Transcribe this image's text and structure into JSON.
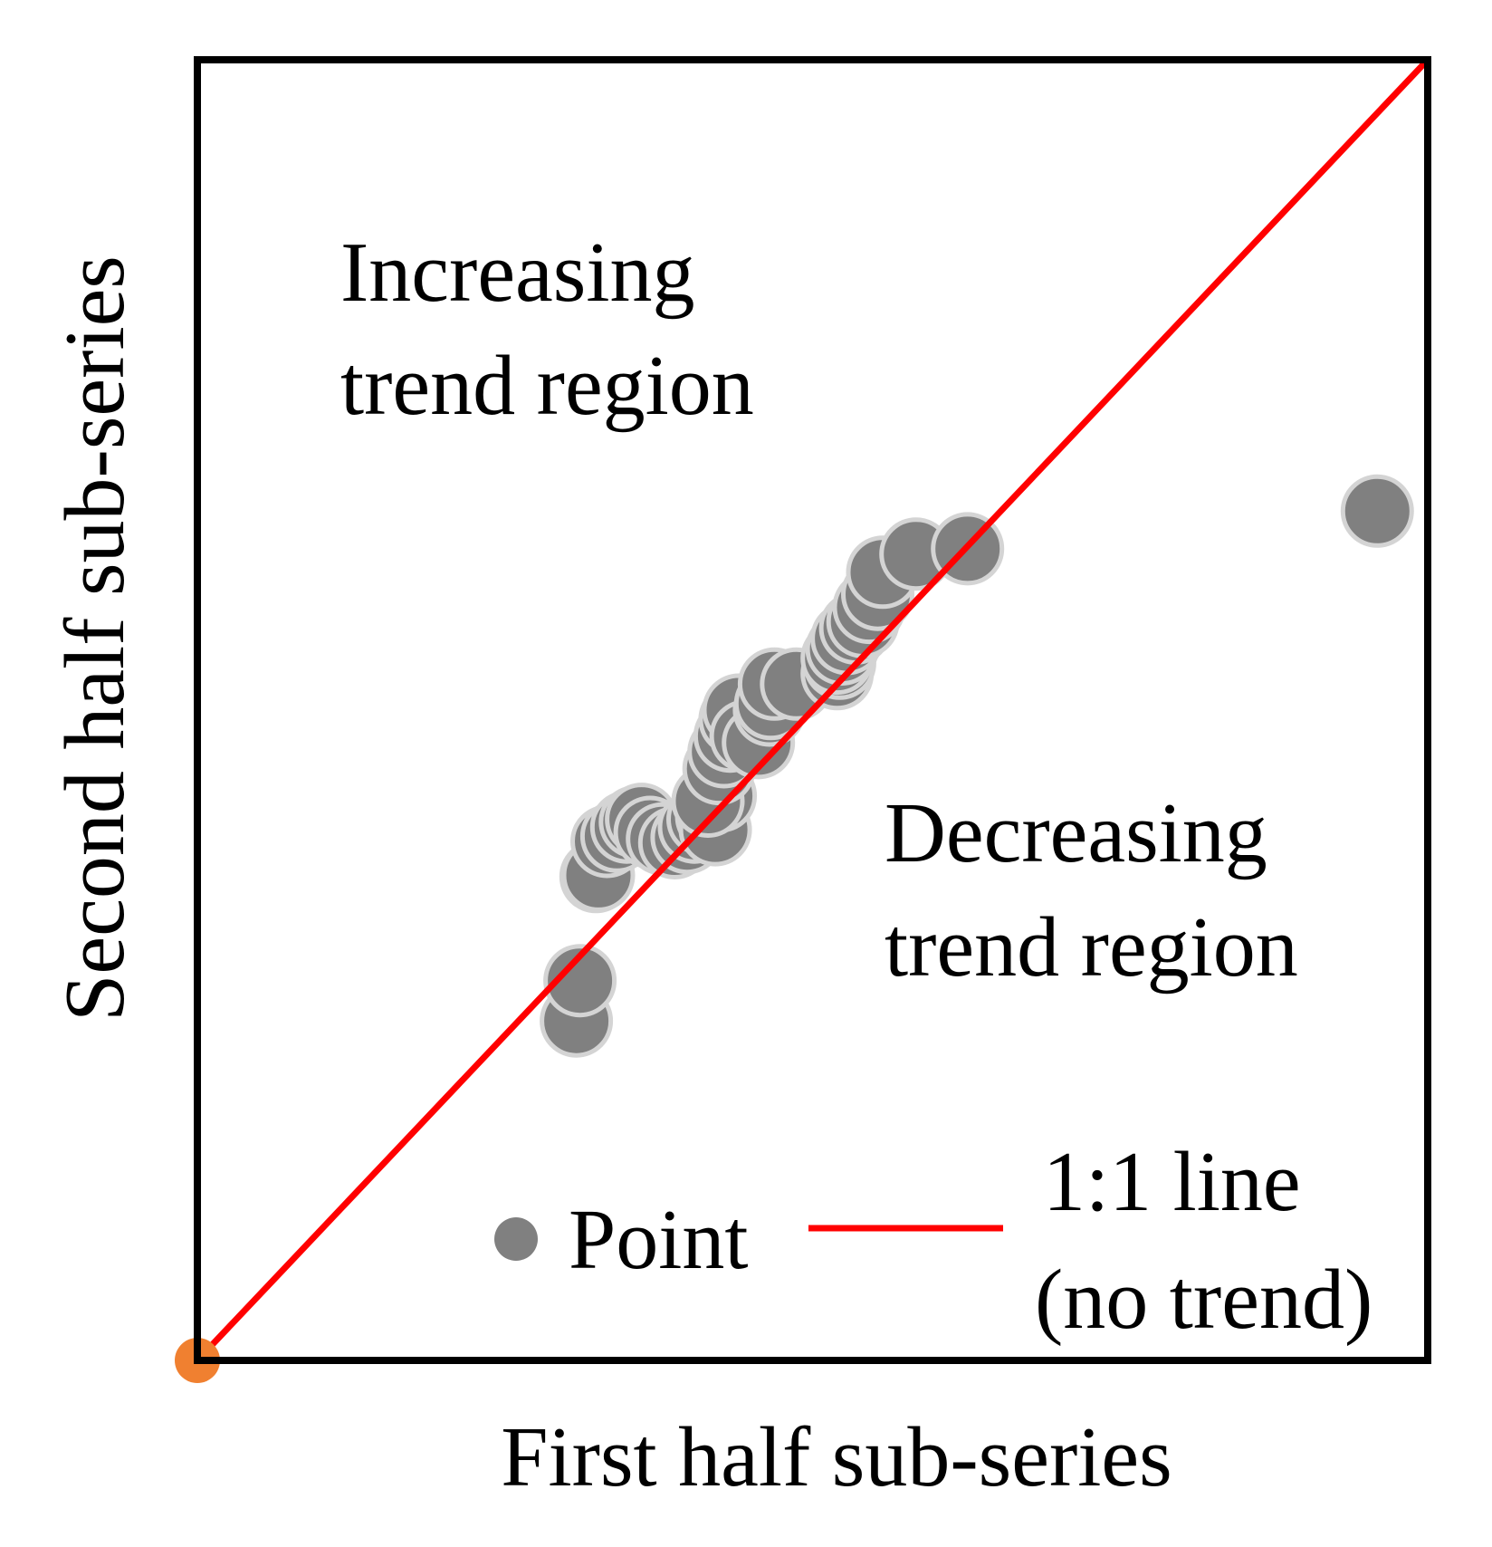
{
  "chart_data": {
    "type": "scatter",
    "title": "",
    "xlabel": "First half sub-series",
    "ylabel": "Second half sub-series",
    "xlim": [
      0,
      1
    ],
    "ylim": [
      0,
      1
    ],
    "grid": false,
    "annotations": {
      "increasing": [
        "Increasing",
        "trend region"
      ],
      "decreasing": [
        "Decreasing",
        "trend region"
      ]
    },
    "legend": {
      "placement": "bottom-right",
      "point_label": "Point",
      "line_label": [
        "1:1 line",
        "(no trend)"
      ]
    },
    "reference_line": {
      "name": "1:1 line",
      "from": [
        0,
        0
      ],
      "to": [
        1,
        1
      ],
      "color": "#ff0000"
    },
    "origin_marker": {
      "x": 0,
      "y": 0,
      "color": "#f08030"
    },
    "series": [
      {
        "color": "#808080",
        "x": [
          0.308,
          0.311,
          0.324,
          0.326,
          0.333,
          0.341,
          0.349,
          0.356,
          0.361,
          0.368,
          0.378,
          0.388,
          0.398,
          0.404,
          0.411,
          0.418,
          0.421,
          0.425,
          0.415,
          0.424,
          0.428,
          0.433,
          0.437,
          0.44,
          0.446,
          0.456,
          0.465,
          0.466,
          0.469,
          0.487,
          0.52,
          0.523,
          0.522,
          0.52,
          0.524,
          0.528,
          0.535,
          0.541,
          0.546,
          0.553,
          0.557,
          0.584,
          0.626,
          0.959
        ],
        "y": [
          0.261,
          0.292,
          0.372,
          0.373,
          0.399,
          0.403,
          0.41,
          0.414,
          0.416,
          0.406,
          0.401,
          0.398,
          0.402,
          0.41,
          0.416,
          0.418,
          0.408,
          0.434,
          0.43,
          0.455,
          0.468,
          0.48,
          0.493,
          0.5,
          0.48,
          0.475,
          0.5,
          0.505,
          0.52,
          0.52,
          0.528,
          0.545,
          0.536,
          0.54,
          0.547,
          0.555,
          0.563,
          0.568,
          0.579,
          0.589,
          0.606,
          0.62,
          0.624,
          0.653
        ]
      }
    ]
  }
}
